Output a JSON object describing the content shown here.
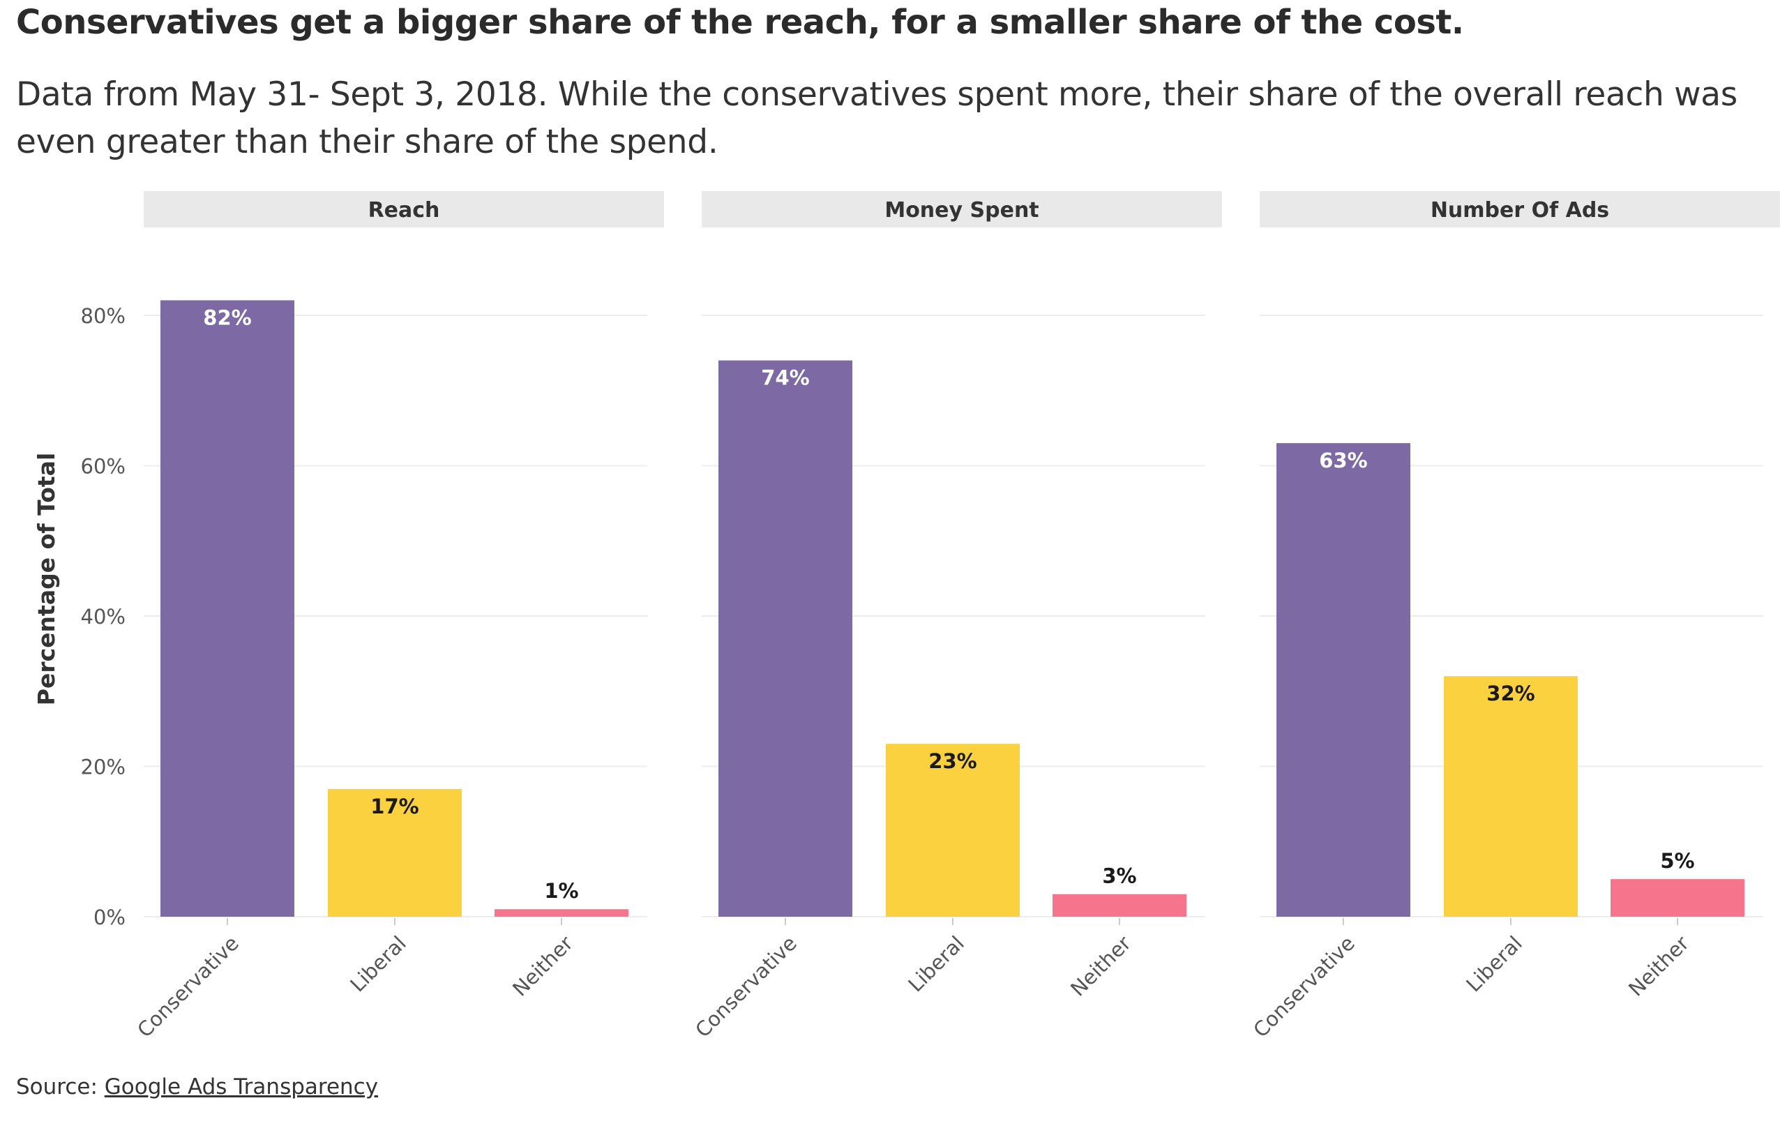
{
  "header": {
    "title": "Conservatives get a bigger share of the reach, for a smaller share of the cost.",
    "subtitle": "Data from May 31- Sept 3, 2018. While the conservatives spent more, their share of the overall reach was even greater than their share of the spend."
  },
  "source": {
    "prefix": "Source:",
    "link_text": "Google Ads Transparency"
  },
  "chart_data": {
    "type": "bar",
    "ylabel": "Percentage of Total",
    "ylim": [
      0,
      90
    ],
    "yticks": [
      0,
      20,
      40,
      60,
      80
    ],
    "ytick_labels": [
      "0%",
      "20%",
      "40%",
      "60%",
      "80%"
    ],
    "categories": [
      "Conservative",
      "Liberal",
      "Neither"
    ],
    "colors": {
      "Conservative": "#7d6aa5",
      "Liberal": "#fcd140",
      "Neither": "#f7758c"
    },
    "grid": true,
    "legend": "none",
    "facets": [
      {
        "name": "Reach",
        "values": [
          82,
          17,
          1
        ],
        "labels": [
          "82%",
          "17%",
          "1%"
        ]
      },
      {
        "name": "Money Spent",
        "values": [
          74,
          23,
          3
        ],
        "labels": [
          "74%",
          "23%",
          "3%"
        ]
      },
      {
        "name": "Number Of Ads",
        "values": [
          63,
          32,
          5
        ],
        "labels": [
          "63%",
          "32%",
          "5%"
        ]
      }
    ]
  }
}
